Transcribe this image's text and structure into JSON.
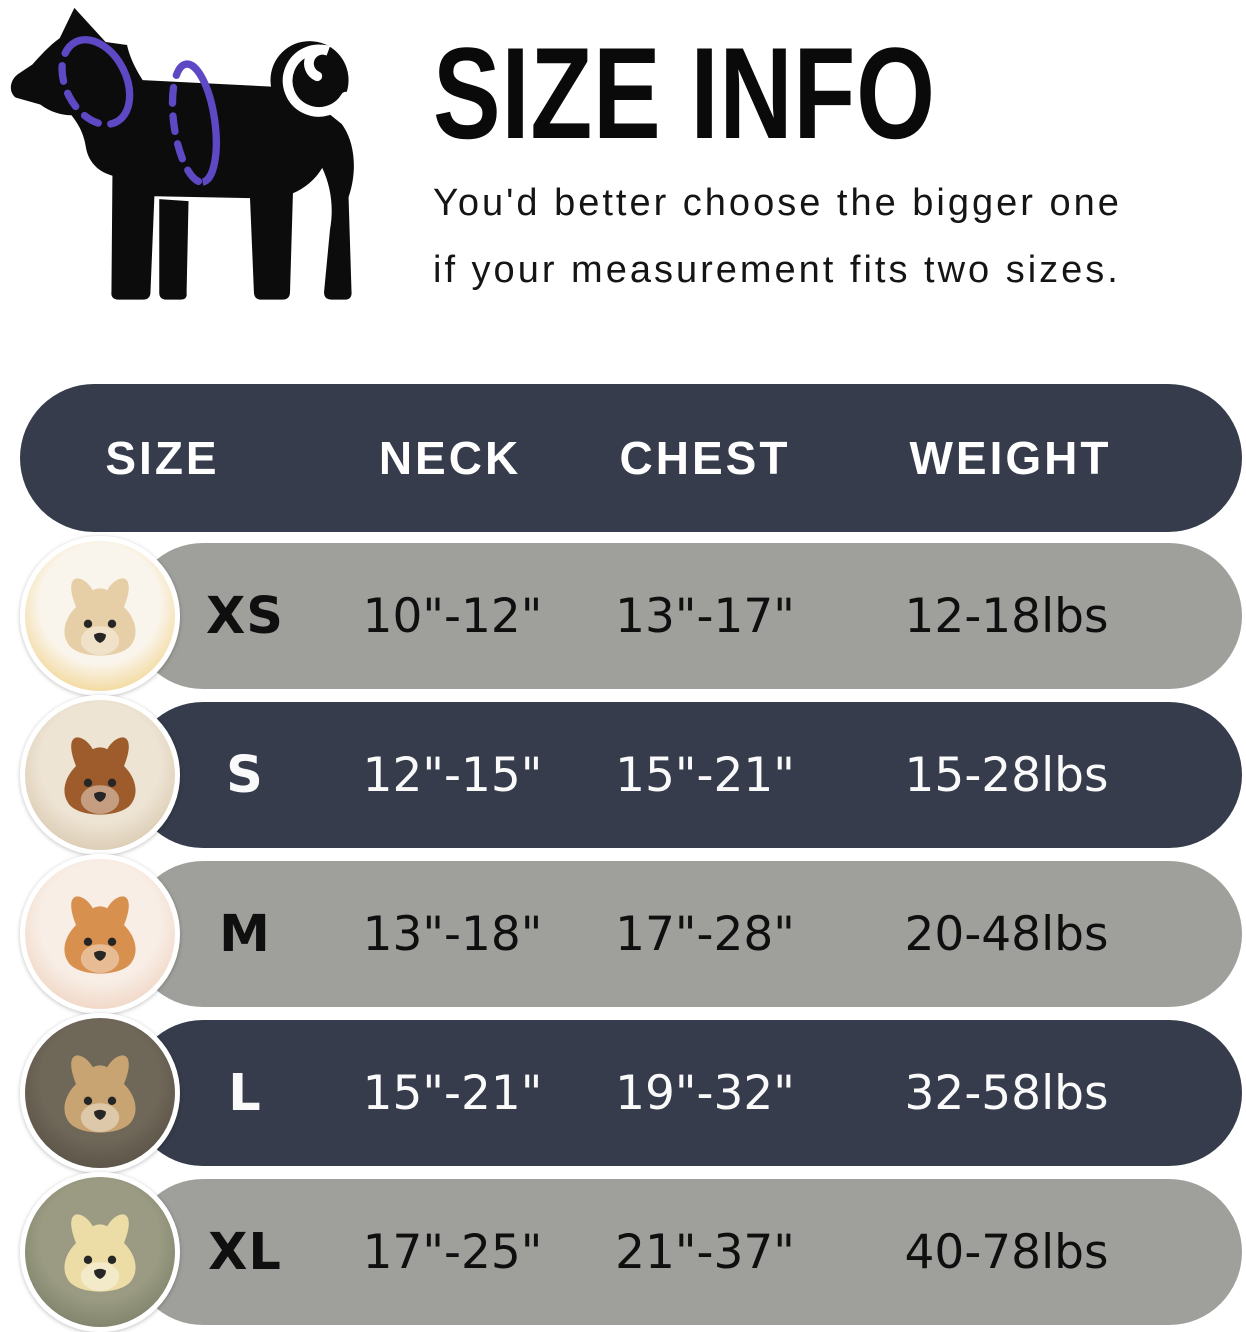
{
  "page": {
    "background": "#ffffff"
  },
  "hero": {
    "title": "SIZE INFO",
    "subtitle_line1": "You'd better choose the bigger one",
    "subtitle_line2": "if your measurement fits two sizes.",
    "diagram": {
      "icon": "dog-silhouette-with-measurement-rings",
      "neck_ring": "neck-measure-ring",
      "chest_ring": "chest-measure-ring",
      "ring_color": "#5f48c4",
      "silhouette_color": "#0c0c0c"
    }
  },
  "table": {
    "columns": [
      "SIZE",
      "NECK",
      "CHEST",
      "WEIGHT"
    ],
    "header_bg": "#363c4b",
    "header_text_color": "#ffffff",
    "row_gray_bg": "#9f9f9c",
    "row_navy_bg": "#363c4b",
    "rows": [
      {
        "size": "XS",
        "neck": "10\"-12\"",
        "chest": "13\"-17\"",
        "weight": "12-18lbs",
        "variant": "gray",
        "photo": {
          "label": "pomeranian-puppy-photo",
          "style": "pom"
        }
      },
      {
        "size": "S",
        "neck": "12\"-15\"",
        "chest": "15\"-21\"",
        "weight": "15-28lbs",
        "variant": "navy",
        "photo": {
          "label": "toy-poodle-photo",
          "style": "poodle"
        }
      },
      {
        "size": "M",
        "neck": "13\"-18\"",
        "chest": "17\"-28\"",
        "weight": "20-48lbs",
        "variant": "gray",
        "photo": {
          "label": "shiba-inu-photo",
          "style": "shiba"
        }
      },
      {
        "size": "L",
        "neck": "15\"-21\"",
        "chest": "19\"-32\"",
        "weight": "32-58lbs",
        "variant": "navy",
        "photo": {
          "label": "french-bulldog-photo",
          "style": "frenchie"
        }
      },
      {
        "size": "XL",
        "neck": "17\"-25\"",
        "chest": "21\"-37\"",
        "weight": "40-78lbs",
        "variant": "gray",
        "photo": {
          "label": "labrador-retriever-photo",
          "style": "lab"
        }
      }
    ]
  },
  "chart_data": {
    "type": "table",
    "title": "SIZE INFO",
    "columns": [
      "SIZE",
      "NECK",
      "CHEST",
      "WEIGHT"
    ],
    "rows": [
      [
        "XS",
        "10\"-12\"",
        "13\"-17\"",
        "12-18lbs"
      ],
      [
        "S",
        "12\"-15\"",
        "15\"-21\"",
        "15-28lbs"
      ],
      [
        "M",
        "13\"-18\"",
        "17\"-28\"",
        "20-48lbs"
      ],
      [
        "L",
        "15\"-21\"",
        "19\"-32\"",
        "32-58lbs"
      ],
      [
        "XL",
        "17\"-25\"",
        "21\"-37\"",
        "40-78lbs"
      ]
    ],
    "notes": "You'd better choose the bigger one if your measurement fits two sizes."
  }
}
